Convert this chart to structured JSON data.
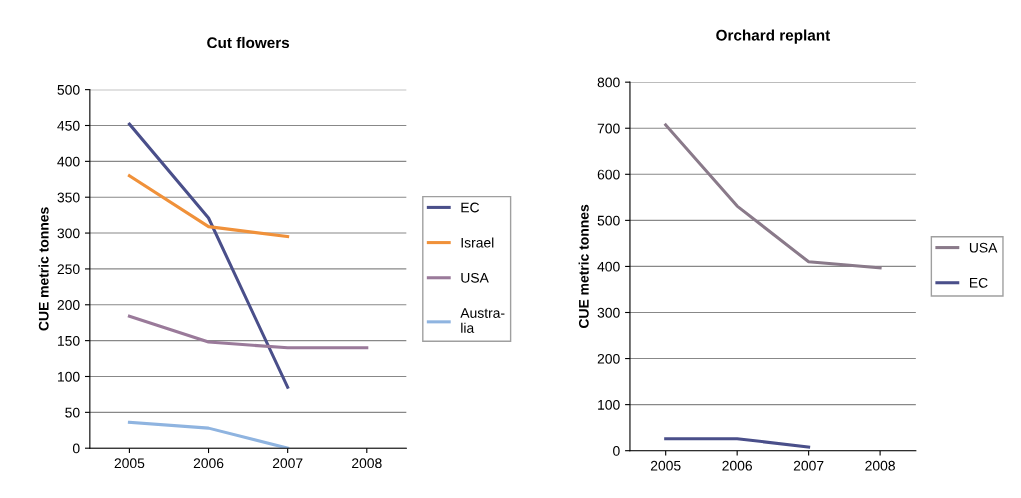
{
  "chart_data": [
    {
      "type": "line",
      "title": "Cut flowers",
      "ylabel": "CUE metric tonnes",
      "categories": [
        "2005",
        "2006",
        "2007",
        "2008"
      ],
      "ylim": [
        0,
        500
      ],
      "yticks": [
        0,
        50,
        100,
        150,
        200,
        250,
        300,
        350,
        400,
        450,
        500
      ],
      "grid": "y",
      "legend": "right",
      "series": [
        {
          "name": "EC",
          "color": "#4a4f8a",
          "values": [
            452,
            321,
            85,
            null
          ]
        },
        {
          "name": "Israel",
          "color": "#f0913a",
          "values": [
            380,
            309,
            295,
            null
          ]
        },
        {
          "name": "USA",
          "color": "#9a7a9a",
          "values": [
            184,
            148,
            140,
            140
          ]
        },
        {
          "name": "Austra-\nlia",
          "color": "#8fb4e0",
          "values": [
            36,
            28,
            0,
            null
          ]
        }
      ]
    },
    {
      "type": "line",
      "title": "Orchard replant",
      "ylabel": "CUE metric tonnes",
      "categories": [
        "2005",
        "2006",
        "2007",
        "2008"
      ],
      "ylim": [
        0,
        800
      ],
      "yticks": [
        0,
        100,
        200,
        300,
        400,
        500,
        600,
        700,
        800
      ],
      "grid": "y",
      "legend": "right",
      "series": [
        {
          "name": "USA",
          "color": "#8a7a8a",
          "values": [
            707,
            531,
            410,
            397
          ]
        },
        {
          "name": "EC",
          "color": "#4a4f8a",
          "values": [
            26,
            26,
            8,
            null
          ]
        }
      ]
    }
  ]
}
